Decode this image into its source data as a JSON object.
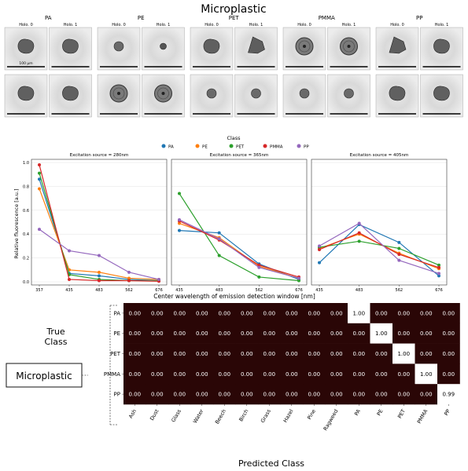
{
  "holo": {
    "title": "Microplastic",
    "holo0_label": "Holo. 0",
    "holo1_label": "Holo. 1",
    "scale_label": "100 µm",
    "groups": [
      {
        "name": "PA",
        "particles": [
          {
            "kind": "blob"
          },
          {
            "kind": "blob"
          },
          {
            "kind": "blob"
          },
          {
            "kind": "blob"
          }
        ]
      },
      {
        "name": "PE",
        "particles": [
          {
            "kind": "small"
          },
          {
            "kind": "dot"
          },
          {
            "kind": "ring"
          },
          {
            "kind": "ring"
          }
        ]
      },
      {
        "name": "PET",
        "particles": [
          {
            "kind": "blob"
          },
          {
            "kind": "shard"
          },
          {
            "kind": "small"
          },
          {
            "kind": "small"
          }
        ]
      },
      {
        "name": "PMMA",
        "particles": [
          {
            "kind": "ring"
          },
          {
            "kind": "ring"
          },
          {
            "kind": "small"
          },
          {
            "kind": "small"
          }
        ]
      },
      {
        "name": "PP",
        "particles": [
          {
            "kind": "shard"
          },
          {
            "kind": "blob"
          },
          {
            "kind": "blob"
          },
          {
            "kind": "blob"
          }
        ]
      }
    ]
  },
  "chart_data": {
    "type": "line",
    "legend_title": "Class",
    "legend_position": "top-center",
    "series_colors": {
      "PA": "#1f77b4",
      "PE": "#ff7f0e",
      "PET": "#2ca02c",
      "PMMA": "#d62728",
      "PP": "#9467bd"
    },
    "ylabel": "Relative fluorescence [a.u.]",
    "xlabel": "Center wavelength of emission detection window [nm]",
    "ylim": [
      0,
      1.0
    ],
    "yticks": [
      "0.0",
      "0.2",
      "0.4",
      "0.6",
      "0.8",
      "1.0"
    ],
    "grid": true,
    "panels": [
      {
        "title": "Excitation source = 280nm",
        "x": [
          "357",
          "435",
          "483",
          "562",
          "676"
        ],
        "series": [
          {
            "name": "PA",
            "values": [
              0.86,
              0.07,
              0.05,
              0.02,
              0.01
            ]
          },
          {
            "name": "PE",
            "values": [
              0.78,
              0.1,
              0.08,
              0.03,
              0.02
            ]
          },
          {
            "name": "PET",
            "values": [
              0.91,
              0.06,
              0.02,
              0.01,
              0.01
            ]
          },
          {
            "name": "PMMA",
            "values": [
              0.98,
              0.02,
              0.01,
              0.01,
              0.005
            ]
          },
          {
            "name": "PP",
            "values": [
              0.44,
              0.26,
              0.22,
              0.08,
              0.02
            ]
          }
        ]
      },
      {
        "title": "Excitation source = 365nm",
        "x": [
          "435",
          "483",
          "562",
          "676"
        ],
        "series": [
          {
            "name": "PA",
            "values": [
              0.43,
              0.41,
              0.15,
              0.02
            ]
          },
          {
            "name": "PE",
            "values": [
              0.49,
              0.37,
              0.13,
              0.03
            ]
          },
          {
            "name": "PET",
            "values": [
              0.74,
              0.22,
              0.04,
              0.01
            ]
          },
          {
            "name": "PMMA",
            "values": [
              0.51,
              0.35,
              0.14,
              0.04
            ]
          },
          {
            "name": "PP",
            "values": [
              0.52,
              0.36,
              0.12,
              0.03
            ]
          }
        ]
      },
      {
        "title": "Excitation source = 405nm",
        "x": [
          "435",
          "483",
          "562",
          "676"
        ],
        "series": [
          {
            "name": "PA",
            "values": [
              0.16,
              0.48,
              0.33,
              0.05
            ]
          },
          {
            "name": "PE",
            "values": [
              0.28,
              0.4,
              0.24,
              0.11
            ]
          },
          {
            "name": "PET",
            "values": [
              0.29,
              0.34,
              0.28,
              0.14
            ]
          },
          {
            "name": "PMMA",
            "values": [
              0.27,
              0.41,
              0.23,
              0.12
            ]
          },
          {
            "name": "PP",
            "values": [
              0.3,
              0.49,
              0.18,
              0.07
            ]
          }
        ]
      }
    ]
  },
  "confusion": {
    "type": "heatmap",
    "true_label": "True\nClass",
    "predicted_label": "Predicted Class",
    "group_label": "Microplastic",
    "rows": [
      "PA",
      "PE",
      "PET",
      "PMMA",
      "PP"
    ],
    "columns": [
      "Ash",
      "Dust",
      "Glass",
      "Water",
      "Beech",
      "Birch",
      "Grass",
      "Hazel",
      "Pine",
      "Ragweed",
      "PA",
      "PE",
      "PET",
      "PMMA",
      "PP"
    ],
    "values": [
      [
        "0.00",
        "0.00",
        "0.00",
        "0.00",
        "0.00",
        "0.00",
        "0.00",
        "0.00",
        "0.00",
        "0.00",
        "1.00",
        "0.00",
        "0.00",
        "0.00",
        "0.00"
      ],
      [
        "0.00",
        "0.00",
        "0.00",
        "0.00",
        "0.00",
        "0.00",
        "0.00",
        "0.00",
        "0.00",
        "0.00",
        "0.00",
        "1.00",
        "0.00",
        "0.00",
        "0.00"
      ],
      [
        "0.00",
        "0.00",
        "0.00",
        "0.00",
        "0.00",
        "0.00",
        "0.00",
        "0.00",
        "0.00",
        "0.00",
        "0.00",
        "0.00",
        "1.00",
        "0.00",
        "0.00"
      ],
      [
        "0.00",
        "0.00",
        "0.00",
        "0.00",
        "0.00",
        "0.00",
        "0.00",
        "0.00",
        "0.00",
        "0.00",
        "0.00",
        "0.00",
        "0.00",
        "1.00",
        "0.00"
      ],
      [
        "0.00",
        "0.00",
        "0.00",
        "0.00",
        "0.00",
        "0.00",
        "0.00",
        "0.00",
        "0.00",
        "0.00",
        "0.00",
        "0.00",
        "0.00",
        "0.00",
        "0.99"
      ]
    ]
  }
}
